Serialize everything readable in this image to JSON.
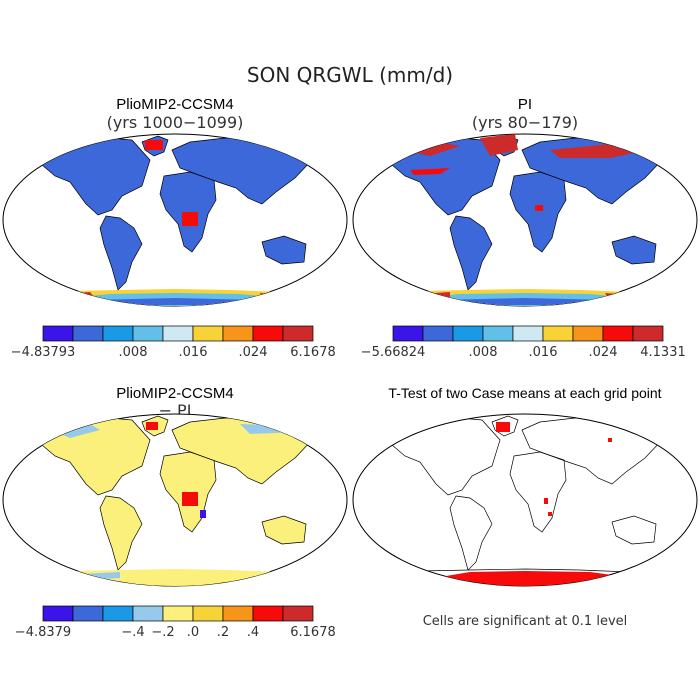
{
  "figure": {
    "title": "SON QRGWL (mm/d)"
  },
  "panels": [
    {
      "title": "PlioMIP2-CCSM4",
      "subtitle": "(yrs 1000−1099)"
    },
    {
      "title": "PI",
      "subtitle": "(yrs 80−179)"
    },
    {
      "title": "PlioMIP2-CCSM4",
      "subtitle": "− PI"
    },
    {
      "title": "T-Test of two Case means at each grid point",
      "subtitle": ""
    }
  ],
  "colorbars": [
    {
      "colors": [
        "#3b14ea",
        "#3d68d9",
        "#1a9ae6",
        "#62bfe8",
        "#cfe9f4",
        "#f7d338",
        "#f7951a",
        "#f70a0a",
        "#cd2b2b"
      ],
      "labels": [
        "−4.83793",
        ".008",
        ".016",
        ".024",
        "6.1678"
      ]
    },
    {
      "colors": [
        "#3b14ea",
        "#3d68d9",
        "#1a9ae6",
        "#62bfe8",
        "#cfe9f4",
        "#f7d338",
        "#f7951a",
        "#f70a0a",
        "#cd2b2b"
      ],
      "labels": [
        "−5.66824",
        ".008",
        ".016",
        ".024",
        "4.1331"
      ]
    },
    {
      "colors": [
        "#3b14ea",
        "#3d68d9",
        "#1a9ae6",
        "#96c9ec",
        "#fbf07c",
        "#f7d338",
        "#f7951a",
        "#f70a0a",
        "#cd2b2b"
      ],
      "labels": [
        "−4.8379",
        "−.4",
        "−.2",
        ".0",
        ".2",
        ".4",
        "6.1678"
      ]
    }
  ],
  "footnote": "Cells are significant at 0.1 level"
}
